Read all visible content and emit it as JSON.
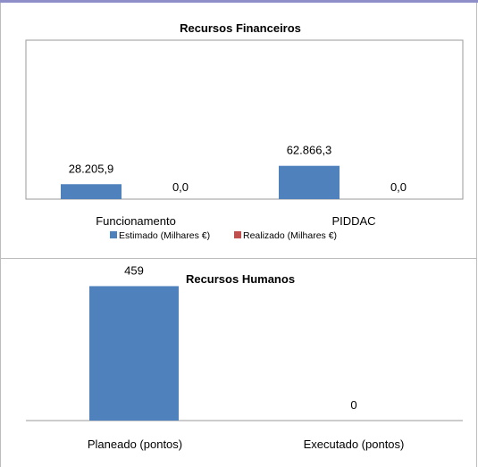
{
  "chart_data": [
    {
      "type": "bar",
      "title": "Recursos Financeiros",
      "categories": [
        "Funcionamento",
        "PIDDAC"
      ],
      "series": [
        {
          "name": "Estimado (Milhares €)",
          "values": [
            28205.9,
            62866.3
          ],
          "labels": [
            "28.205,9",
            "62.866,3"
          ],
          "color": "#4f81bd"
        },
        {
          "name": "Realizado (Milhares €)",
          "values": [
            0.0,
            0.0
          ],
          "labels": [
            "0,0",
            "0,0"
          ],
          "color": "#c0504d"
        }
      ],
      "ylim": [
        0,
        300000
      ],
      "legend": "bottom",
      "grid": false
    },
    {
      "type": "bar",
      "title": "Recursos Humanos",
      "categories": [
        "Planeado (pontos)",
        "Executado (pontos)"
      ],
      "values": [
        459,
        0
      ],
      "labels": [
        "459",
        "0"
      ],
      "color": "#4f81bd",
      "ylim": [
        0,
        500
      ],
      "grid": false
    }
  ]
}
